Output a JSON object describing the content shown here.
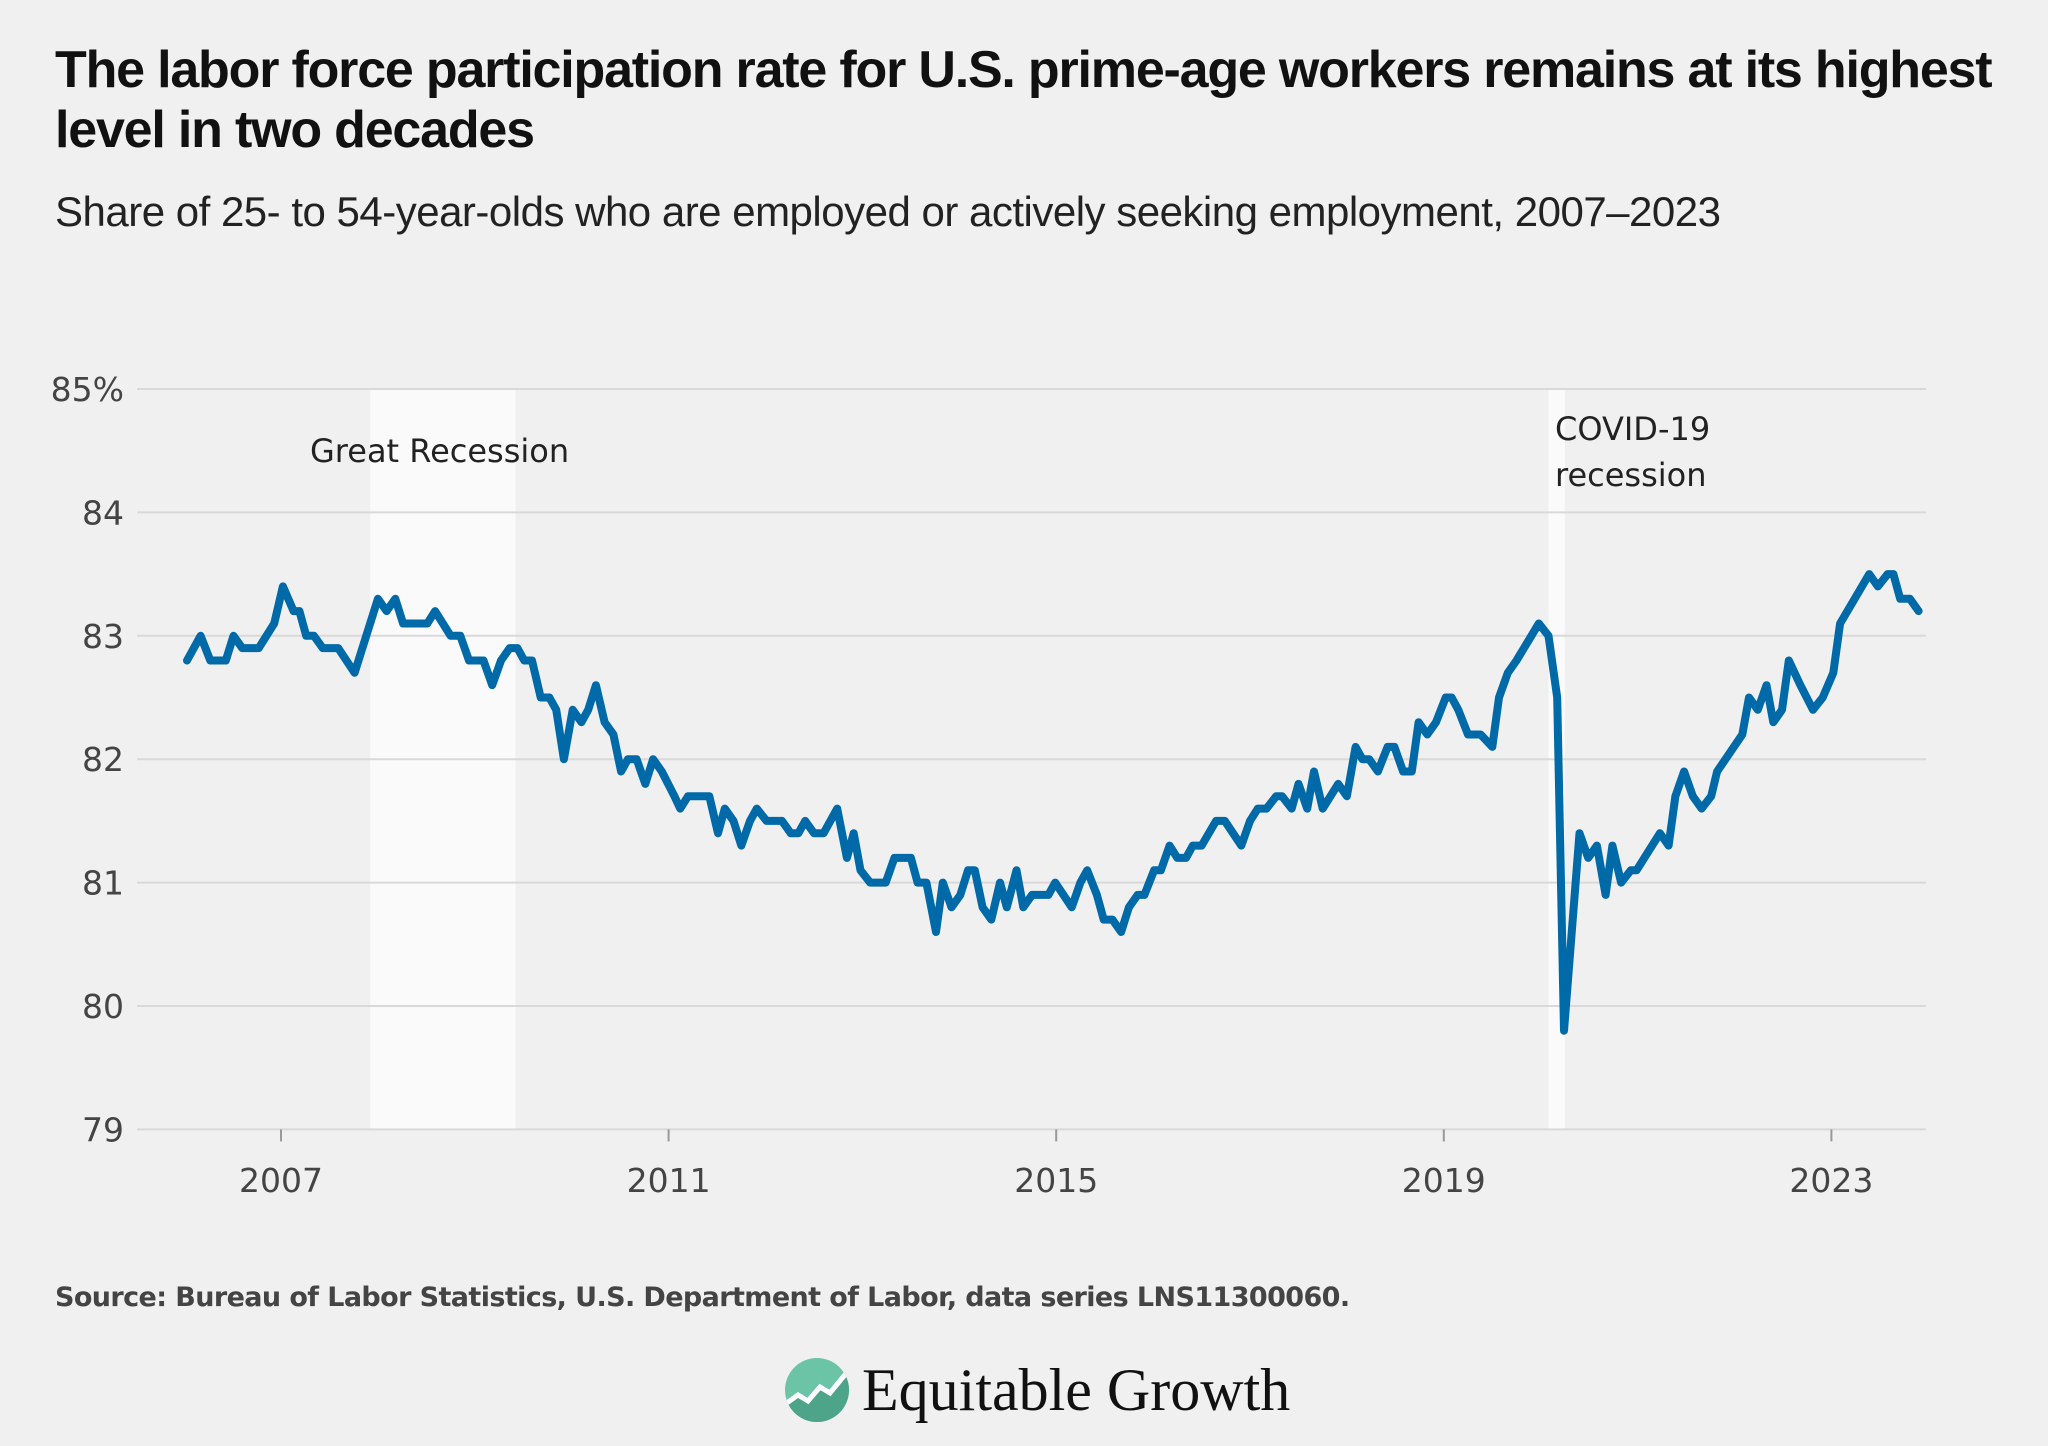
{
  "header": {
    "title": "The labor force participation rate for U.S. prime-age workers remains at its highest level in two decades",
    "subtitle": "Share of 25- to 54-year-olds who are employed or actively seeking employment, 2007–2023"
  },
  "footer": {
    "source": "Source: Bureau of Labor Statistics, U.S. Department of Labor, data series LNS11300060.",
    "logo_text": "Equitable Growth"
  },
  "colors": {
    "line": "#006aa8",
    "background": "#f0f0f0",
    "recession_band": "#fafafa",
    "grid": "#d9d9d9",
    "logo_green": "#5bb89a"
  },
  "chart_data": {
    "type": "line",
    "xlim": [
      2006,
      2024
    ],
    "ylim": [
      79,
      85
    ],
    "grid": "horizontal",
    "x_ticks": [
      2007,
      2011,
      2015,
      2019,
      2023
    ],
    "x_tick_labels": [
      "2007",
      "2011",
      "2015",
      "2019",
      "2023"
    ],
    "y_ticks": [
      85,
      84,
      83,
      82,
      81,
      80,
      79
    ],
    "y_tick_labels": [
      "85%",
      "84",
      "83",
      "82",
      "81",
      "80",
      "79"
    ],
    "shaded_periods": [
      {
        "label": "Great Recession",
        "start": 2007.92,
        "end": 2009.42
      },
      {
        "label": "COVID-19\nrecession",
        "label_lines": [
          "COVID-19",
          "recession"
        ],
        "start": 2020.08,
        "end": 2020.25
      }
    ],
    "series": [
      {
        "points": [
          [
            2006.03,
            82.8
          ],
          [
            2006.17,
            83.0
          ],
          [
            2006.27,
            82.8
          ],
          [
            2006.43,
            82.8
          ],
          [
            2006.51,
            83.0
          ],
          [
            2006.6,
            82.9
          ],
          [
            2006.77,
            82.9
          ],
          [
            2006.93,
            83.1
          ],
          [
            2007.02,
            83.4
          ],
          [
            2007.13,
            83.2
          ],
          [
            2007.19,
            83.2
          ],
          [
            2007.26,
            83.0
          ],
          [
            2007.34,
            83.0
          ],
          [
            2007.43,
            82.9
          ],
          [
            2007.59,
            82.9
          ],
          [
            2007.76,
            82.7
          ],
          [
            2008.0,
            83.3
          ],
          [
            2008.09,
            83.2
          ],
          [
            2008.18,
            83.3
          ],
          [
            2008.26,
            83.1
          ],
          [
            2008.51,
            83.1
          ],
          [
            2008.59,
            83.2
          ],
          [
            2008.75,
            83.0
          ],
          [
            2008.85,
            83.0
          ],
          [
            2008.94,
            82.8
          ],
          [
            2009.09,
            82.8
          ],
          [
            2009.18,
            82.6
          ],
          [
            2009.27,
            82.8
          ],
          [
            2009.36,
            82.9
          ],
          [
            2009.44,
            82.9
          ],
          [
            2009.51,
            82.8
          ],
          [
            2009.59,
            82.8
          ],
          [
            2009.68,
            82.5
          ],
          [
            2009.77,
            82.5
          ],
          [
            2009.84,
            82.4
          ],
          [
            2009.92,
            82.0
          ],
          [
            2010.01,
            82.4
          ],
          [
            2010.1,
            82.3
          ],
          [
            2010.17,
            82.4
          ],
          [
            2010.25,
            82.6
          ],
          [
            2010.34,
            82.3
          ],
          [
            2010.43,
            82.2
          ],
          [
            2010.51,
            81.9
          ],
          [
            2010.58,
            82.0
          ],
          [
            2010.67,
            82.0
          ],
          [
            2010.76,
            81.8
          ],
          [
            2010.84,
            82.0
          ],
          [
            2010.93,
            81.9
          ],
          [
            2011.06,
            81.7
          ],
          [
            2011.12,
            81.6
          ],
          [
            2011.2,
            81.7
          ],
          [
            2011.42,
            81.7
          ],
          [
            2011.51,
            81.4
          ],
          [
            2011.58,
            81.6
          ],
          [
            2011.67,
            81.5
          ],
          [
            2011.75,
            81.3
          ],
          [
            2011.84,
            81.5
          ],
          [
            2011.91,
            81.6
          ],
          [
            2012.01,
            81.5
          ],
          [
            2012.17,
            81.5
          ],
          [
            2012.26,
            81.4
          ],
          [
            2012.34,
            81.4
          ],
          [
            2012.41,
            81.5
          ],
          [
            2012.5,
            81.4
          ],
          [
            2012.6,
            81.4
          ],
          [
            2012.74,
            81.6
          ],
          [
            2012.84,
            81.2
          ],
          [
            2012.91,
            81.4
          ],
          [
            2012.98,
            81.1
          ],
          [
            2013.08,
            81.0
          ],
          [
            2013.24,
            81.0
          ],
          [
            2013.33,
            81.2
          ],
          [
            2013.5,
            81.2
          ],
          [
            2013.57,
            81.0
          ],
          [
            2013.66,
            81.0
          ],
          [
            2013.76,
            80.6
          ],
          [
            2013.83,
            81.0
          ],
          [
            2013.92,
            80.8
          ],
          [
            2014.01,
            80.9
          ],
          [
            2014.09,
            81.1
          ],
          [
            2014.16,
            81.1
          ],
          [
            2014.24,
            80.8
          ],
          [
            2014.33,
            80.7
          ],
          [
            2014.42,
            81.0
          ],
          [
            2014.49,
            80.8
          ],
          [
            2014.59,
            81.1
          ],
          [
            2014.66,
            80.8
          ],
          [
            2014.75,
            80.9
          ],
          [
            2014.92,
            80.9
          ],
          [
            2014.99,
            81.0
          ],
          [
            2015.16,
            80.8
          ],
          [
            2015.25,
            81.0
          ],
          [
            2015.32,
            81.1
          ],
          [
            2015.42,
            80.9
          ],
          [
            2015.49,
            80.7
          ],
          [
            2015.58,
            80.7
          ],
          [
            2015.67,
            80.6
          ],
          [
            2015.75,
            80.8
          ],
          [
            2015.84,
            80.9
          ],
          [
            2015.91,
            80.9
          ],
          [
            2016.01,
            81.1
          ],
          [
            2016.08,
            81.1
          ],
          [
            2016.17,
            81.3
          ],
          [
            2016.25,
            81.2
          ],
          [
            2016.34,
            81.2
          ],
          [
            2016.41,
            81.3
          ],
          [
            2016.5,
            81.3
          ],
          [
            2016.65,
            81.5
          ],
          [
            2016.74,
            81.5
          ],
          [
            2016.91,
            81.3
          ],
          [
            2017.0,
            81.5
          ],
          [
            2017.08,
            81.6
          ],
          [
            2017.17,
            81.6
          ],
          [
            2017.27,
            81.7
          ],
          [
            2017.33,
            81.7
          ],
          [
            2017.43,
            81.6
          ],
          [
            2017.5,
            81.8
          ],
          [
            2017.59,
            81.6
          ],
          [
            2017.66,
            81.9
          ],
          [
            2017.75,
            81.6
          ],
          [
            2017.91,
            81.8
          ],
          [
            2018.0,
            81.7
          ],
          [
            2018.09,
            82.1
          ],
          [
            2018.16,
            82.0
          ],
          [
            2018.23,
            82.0
          ],
          [
            2018.32,
            81.9
          ],
          [
            2018.42,
            82.1
          ],
          [
            2018.49,
            82.1
          ],
          [
            2018.58,
            81.9
          ],
          [
            2018.67,
            81.9
          ],
          [
            2018.74,
            82.3
          ],
          [
            2018.83,
            82.2
          ],
          [
            2018.92,
            82.3
          ],
          [
            2019.02,
            82.5
          ],
          [
            2019.08,
            82.5
          ],
          [
            2019.15,
            82.4
          ],
          [
            2019.25,
            82.2
          ],
          [
            2019.38,
            82.2
          ],
          [
            2019.5,
            82.1
          ],
          [
            2019.57,
            82.5
          ],
          [
            2019.66,
            82.7
          ],
          [
            2019.75,
            82.8
          ],
          [
            2019.98,
            83.1
          ],
          [
            2020.08,
            83.0
          ],
          [
            2020.17,
            82.5
          ],
          [
            2020.24,
            79.8
          ],
          [
            2020.4,
            81.4
          ],
          [
            2020.49,
            81.2
          ],
          [
            2020.58,
            81.3
          ],
          [
            2020.67,
            80.9
          ],
          [
            2020.74,
            81.3
          ],
          [
            2020.83,
            81.0
          ],
          [
            2020.93,
            81.1
          ],
          [
            2020.99,
            81.1
          ],
          [
            2021.23,
            81.4
          ],
          [
            2021.32,
            81.3
          ],
          [
            2021.39,
            81.7
          ],
          [
            2021.48,
            81.9
          ],
          [
            2021.57,
            81.7
          ],
          [
            2021.66,
            81.6
          ],
          [
            2021.76,
            81.7
          ],
          [
            2021.82,
            81.9
          ],
          [
            2022.08,
            82.2
          ],
          [
            2022.15,
            82.5
          ],
          [
            2022.24,
            82.4
          ],
          [
            2022.33,
            82.6
          ],
          [
            2022.4,
            82.3
          ],
          [
            2022.49,
            82.4
          ],
          [
            2022.56,
            82.8
          ],
          [
            2022.68,
            82.6
          ],
          [
            2022.81,
            82.4
          ],
          [
            2022.91,
            82.5
          ],
          [
            2023.02,
            82.7
          ],
          [
            2023.09,
            83.1
          ],
          [
            2023.39,
            83.5
          ],
          [
            2023.48,
            83.4
          ],
          [
            2023.58,
            83.5
          ],
          [
            2023.64,
            83.5
          ],
          [
            2023.71,
            83.3
          ],
          [
            2023.81,
            83.3
          ],
          [
            2023.9,
            83.2
          ]
        ]
      }
    ]
  }
}
